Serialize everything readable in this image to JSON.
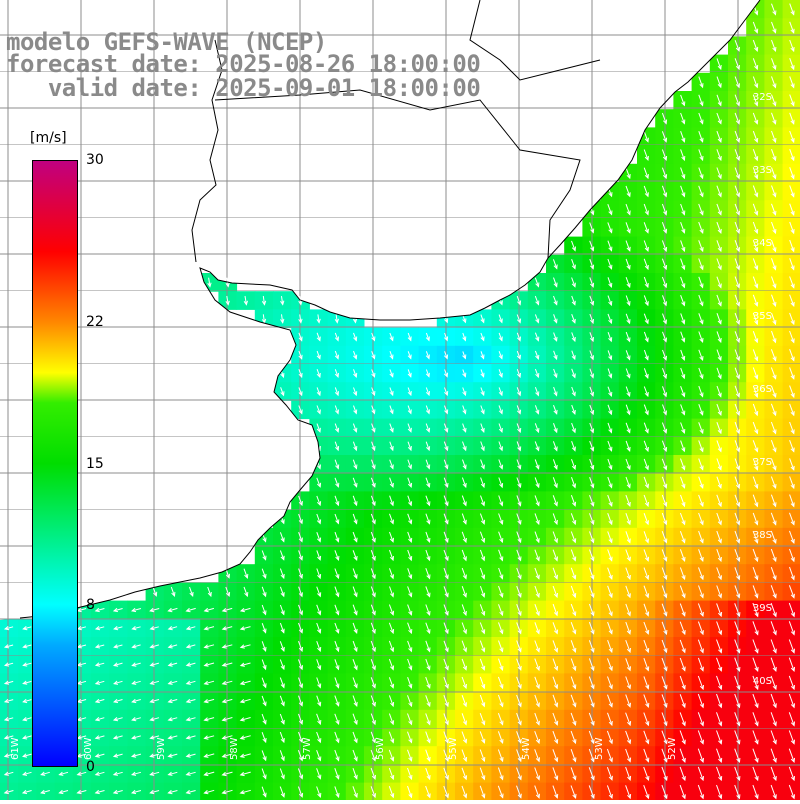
{
  "title": {
    "line1": "modelo GEFS-WAVE (NCEP)",
    "line2": "forecast date: 2025-08-26 18:00:00",
    "line3": "   valid date: 2025-09-01 18:00:00"
  },
  "legend": {
    "unit": "[m/s]",
    "min": 0,
    "max": 30,
    "ticks": [
      {
        "value": 30,
        "label": "30"
      },
      {
        "value": 22,
        "label": "22"
      },
      {
        "value": 15,
        "label": "15"
      },
      {
        "value": 8,
        "label": "8"
      },
      {
        "value": 0,
        "label": "0"
      }
    ]
  },
  "lat_labels": [
    "32S",
    "33S",
    "34S",
    "35S",
    "36S",
    "37S",
    "38S",
    "39S",
    "40S"
  ],
  "lon_labels": [
    "61W",
    "60W",
    "59W",
    "58W",
    "57W",
    "56W",
    "55W",
    "54W",
    "53W",
    "52W"
  ],
  "colors": {
    "land": "#ffffff",
    "coast": "#000000",
    "grid": "#8c8c8c",
    "arrow": "#ffffff",
    "title": "#8a8a8a"
  }
}
